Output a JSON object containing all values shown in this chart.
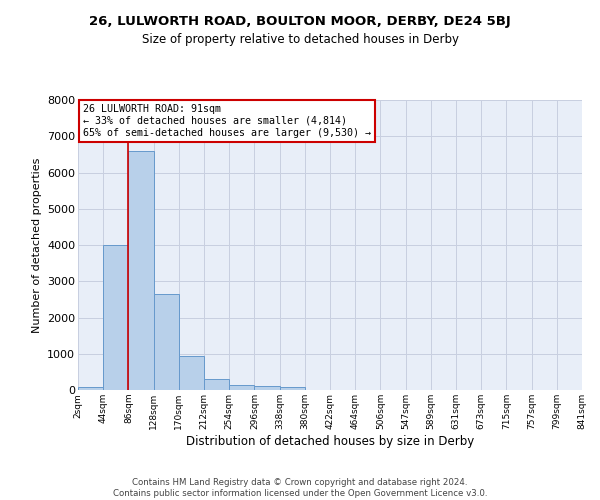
{
  "title": "26, LULWORTH ROAD, BOULTON MOOR, DERBY, DE24 5BJ",
  "subtitle": "Size of property relative to detached houses in Derby",
  "xlabel": "Distribution of detached houses by size in Derby",
  "ylabel": "Number of detached properties",
  "footer_line1": "Contains HM Land Registry data © Crown copyright and database right 2024.",
  "footer_line2": "Contains public sector information licensed under the Open Government Licence v3.0.",
  "annotation_title": "26 LULWORTH ROAD: 91sqm",
  "annotation_line1": "← 33% of detached houses are smaller (4,814)",
  "annotation_line2": "65% of semi-detached houses are larger (9,530) →",
  "bar_values": [
    75,
    4000,
    6600,
    2650,
    950,
    310,
    130,
    110,
    90,
    0,
    0,
    0,
    0,
    0,
    0,
    0,
    0,
    0,
    0,
    0
  ],
  "bar_color": "#b8d0ea",
  "bar_edge_color": "#6699cc",
  "grid_color": "#c8cfe0",
  "background_color": "#e8eef8",
  "vline_color": "#cc0000",
  "box_color": "#cc0000",
  "tick_labels": [
    "2sqm",
    "44sqm",
    "86sqm",
    "128sqm",
    "170sqm",
    "212sqm",
    "254sqm",
    "296sqm",
    "338sqm",
    "380sqm",
    "422sqm",
    "464sqm",
    "506sqm",
    "547sqm",
    "589sqm",
    "631sqm",
    "673sqm",
    "715sqm",
    "757sqm",
    "799sqm",
    "841sqm"
  ],
  "ylim": [
    0,
    8000
  ],
  "yticks": [
    0,
    1000,
    2000,
    3000,
    4000,
    5000,
    6000,
    7000,
    8000
  ]
}
